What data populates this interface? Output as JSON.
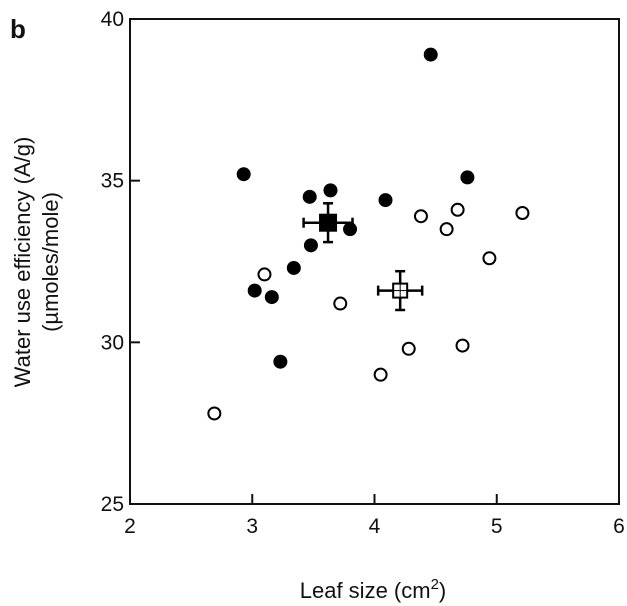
{
  "chart_data": {
    "type": "scatter",
    "panel_label": "b",
    "xlabel": "Leaf size (cm",
    "xlabel_superscript": "2",
    "xlabel_suffix": ")",
    "ylabel": "Water use efficiency (A/g)",
    "ylabel_line2": "(µmoles/mole)",
    "xlim": [
      2,
      6
    ],
    "ylim": [
      25,
      40
    ],
    "xticks": [
      "2",
      "3",
      "4",
      "5",
      "6"
    ],
    "yticks": [
      "25",
      "30",
      "35",
      "40"
    ],
    "grid": false,
    "series": [
      {
        "marker": "filled-circle",
        "color": "#000000",
        "points": [
          {
            "x": 2.93,
            "y": 35.2
          },
          {
            "x": 3.02,
            "y": 31.6
          },
          {
            "x": 3.16,
            "y": 31.4
          },
          {
            "x": 3.23,
            "y": 29.4
          },
          {
            "x": 3.34,
            "y": 32.3
          },
          {
            "x": 3.47,
            "y": 34.5
          },
          {
            "x": 3.48,
            "y": 33.0
          },
          {
            "x": 3.64,
            "y": 34.7
          },
          {
            "x": 3.8,
            "y": 33.5
          },
          {
            "x": 4.09,
            "y": 34.4
          },
          {
            "x": 4.46,
            "y": 38.9
          },
          {
            "x": 4.76,
            "y": 35.1
          }
        ],
        "mean": {
          "x": 3.62,
          "y": 33.7,
          "x_err": 0.2,
          "y_err": 0.6,
          "marker": "filled-square"
        }
      },
      {
        "marker": "open-circle",
        "color": "#000000",
        "points": [
          {
            "x": 2.69,
            "y": 27.8
          },
          {
            "x": 3.1,
            "y": 32.1
          },
          {
            "x": 3.72,
            "y": 31.2
          },
          {
            "x": 4.05,
            "y": 29.0
          },
          {
            "x": 4.28,
            "y": 29.8
          },
          {
            "x": 4.38,
            "y": 33.9
          },
          {
            "x": 4.59,
            "y": 33.5
          },
          {
            "x": 4.68,
            "y": 34.1
          },
          {
            "x": 4.72,
            "y": 29.9
          },
          {
            "x": 4.94,
            "y": 32.6
          },
          {
            "x": 5.21,
            "y": 34.0
          }
        ],
        "mean": {
          "x": 4.21,
          "y": 31.6,
          "x_err": 0.18,
          "y_err": 0.6,
          "marker": "open-square"
        }
      }
    ]
  }
}
